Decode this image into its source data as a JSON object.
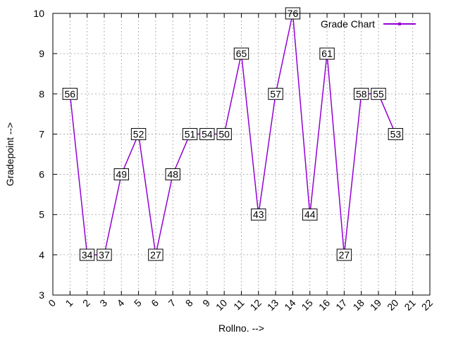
{
  "chart_data": {
    "type": "line",
    "title": "",
    "xlabel": "Rollno. -->",
    "ylabel": "Gradepoint -->",
    "xlim": [
      0,
      22
    ],
    "ylim": [
      3,
      10
    ],
    "x_ticks": [
      0,
      1,
      2,
      3,
      4,
      5,
      6,
      7,
      8,
      9,
      10,
      11,
      12,
      13,
      14,
      15,
      16,
      17,
      18,
      19,
      20,
      21,
      22
    ],
    "y_ticks": [
      3,
      4,
      5,
      6,
      7,
      8,
      9,
      10
    ],
    "grid": true,
    "legend_position": "top-right",
    "colors": {
      "series": "#9400d3",
      "grid": "#a0a0a0",
      "axis": "#000000"
    },
    "series": [
      {
        "name": "Grade Chart",
        "x": [
          1,
          2,
          3,
          4,
          5,
          6,
          7,
          8,
          9,
          10,
          11,
          12,
          13,
          14,
          15,
          16,
          17,
          18,
          19,
          20
        ],
        "y": [
          8,
          4,
          4,
          6,
          7,
          4,
          6,
          7,
          7,
          7,
          9,
          5,
          8,
          10,
          5,
          9,
          4,
          8,
          8,
          7
        ],
        "labels": [
          "56",
          "34",
          "37",
          "49",
          "52",
          "27",
          "48",
          "51",
          "54",
          "50",
          "65",
          "43",
          "57",
          "76",
          "44",
          "61",
          "27",
          "58",
          "55",
          "53"
        ]
      }
    ]
  }
}
